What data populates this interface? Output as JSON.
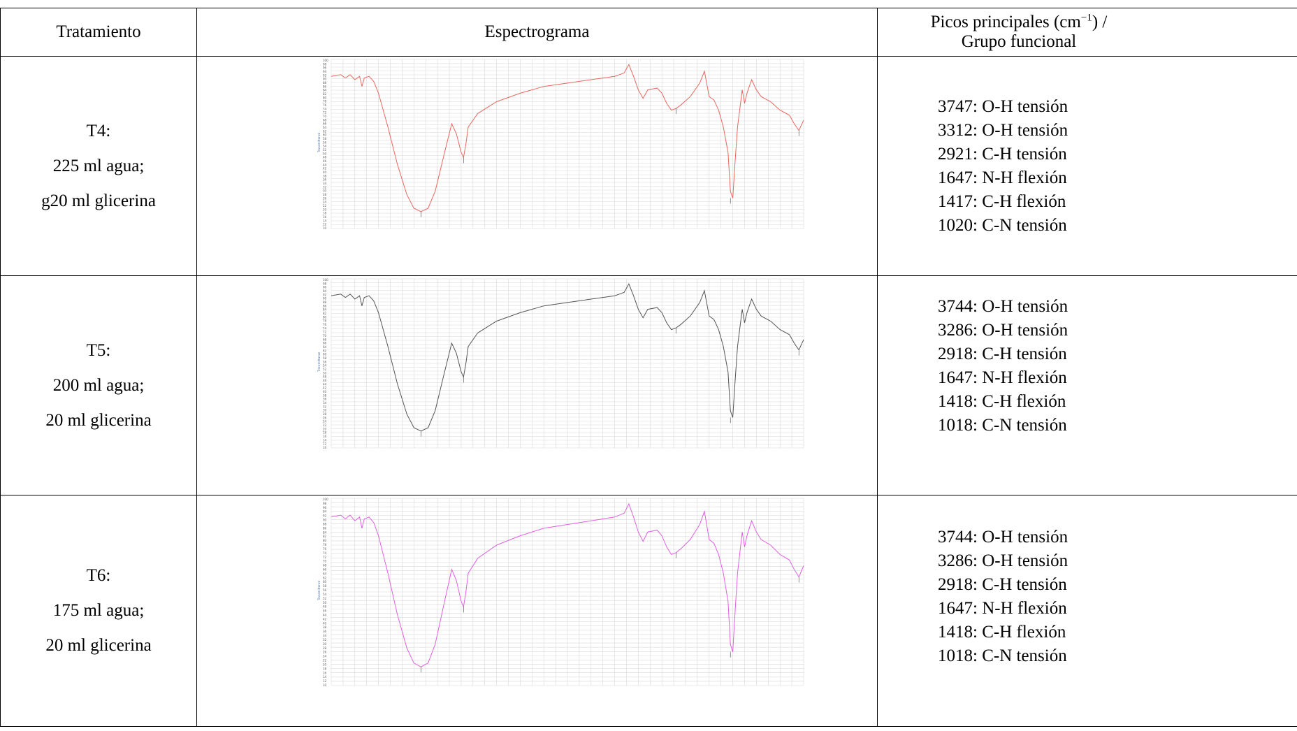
{
  "headers": {
    "tratamiento": "Tratamiento",
    "espectrograma": "Espectrograma",
    "picos_a": "Picos principales (cm",
    "picos_sup": "−1",
    "picos_b": ") /",
    "picos_c": "Grupo funcional"
  },
  "rows": [
    {
      "label": "T4:",
      "line1": "225 ml agua;",
      "line2": "g20 ml glicerina",
      "peaks": [
        "3747: O-H tensión",
        "3312: O-H tensión",
        "2921: C-H tensión",
        "1647: N-H flexión",
        "1417: C-H flexión",
        "1020: C-N tensión"
      ],
      "color": "#e8675f"
    },
    {
      "label": "T5:",
      "line1": "200 ml agua;",
      "line2": "20 ml glicerina",
      "peaks": [
        "3744: O-H tensión",
        "3286: O-H tensión",
        "2918: C-H tensión",
        "1647: N-H flexión",
        "1418: C-H flexión",
        "1018: C-N tensión"
      ],
      "color": "#555555"
    },
    {
      "label": "T6:",
      "line1": "175 ml agua;",
      "line2": "20 ml glicerina",
      "peaks": [
        "3744: O-H tensión",
        "3286: O-H tensión",
        "2918: C-H tensión",
        "1647: N-H flexión",
        "1418: C-H flexión",
        "1018: C-N tensión"
      ],
      "color": "#e060e0"
    }
  ],
  "spectrum": {
    "y_axis_label": "Transmittance",
    "y_ticks": [
      "100",
      "98",
      "96",
      "94",
      "92",
      "90",
      "88",
      "86",
      "84",
      "82",
      "80",
      "78",
      "76",
      "74",
      "72",
      "70",
      "68",
      "66",
      "64",
      "62",
      "60",
      "58",
      "56",
      "54",
      "52",
      "50",
      "48",
      "46",
      "44",
      "42",
      "40",
      "38",
      "36",
      "34",
      "32",
      "30",
      "28",
      "26",
      "24",
      "22",
      "20",
      "18",
      "16",
      "14",
      "12",
      "10"
    ]
  }
}
